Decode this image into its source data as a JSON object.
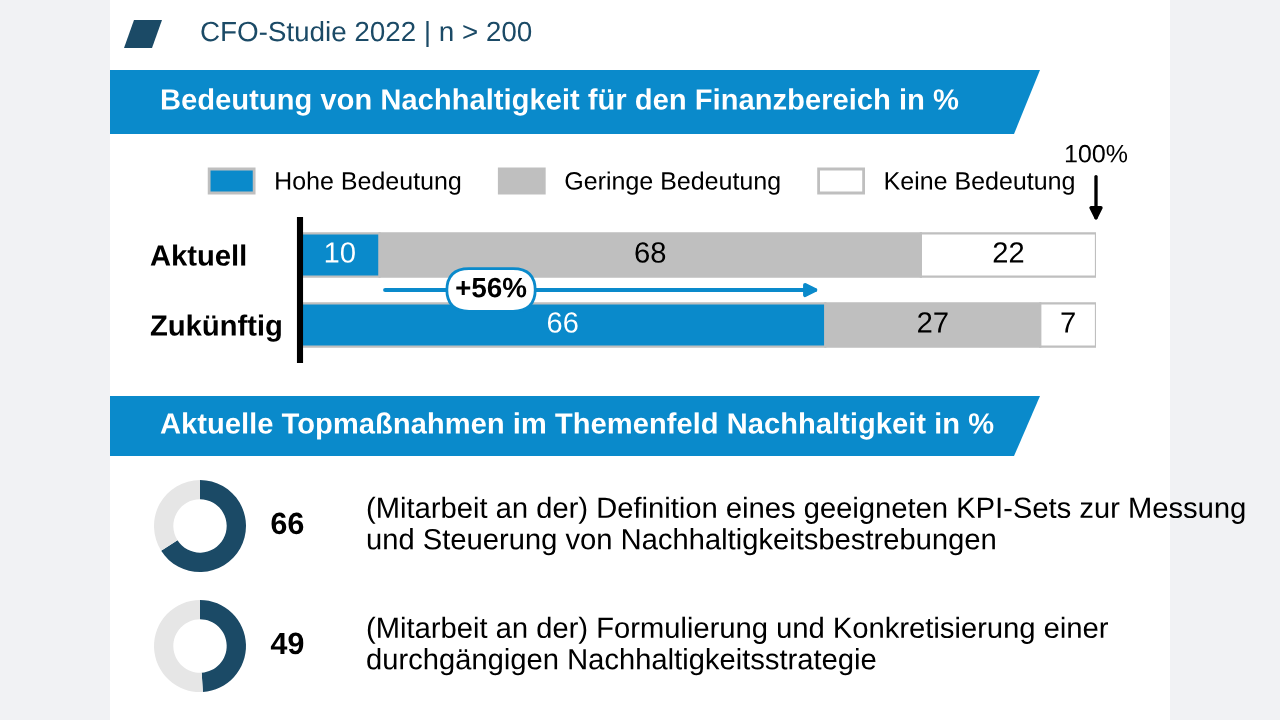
{
  "chart_data": [
    {
      "type": "bar",
      "orientation": "horizontal",
      "stacked": true,
      "title": "Bedeutung von Nachhaltigkeit für den Finanzbereich in %",
      "categories": [
        "Aktuell",
        "Zukünftig"
      ],
      "xlim": [
        0,
        100
      ],
      "series": [
        {
          "name": "Hohe Bedeutung",
          "color": "#0a8acb",
          "values": [
            10,
            66
          ]
        },
        {
          "name": "Geringe Bedeutung",
          "color": "#bfbfbf",
          "values": [
            68,
            27
          ]
        },
        {
          "name": "Keine Bedeutung",
          "color": "#ffffff",
          "values": [
            22,
            7
          ]
        }
      ],
      "data_labels": true,
      "legend": "top",
      "annotations": [
        "CFO-Studie 2022 | n > 200",
        "100%",
        "+56%"
      ]
    },
    {
      "type": "donut",
      "title": "Aktuelle Topmaßnahmen im Themenfeld Nachhaltigkeit in %",
      "categories": [
        null,
        null
      ],
      "values": [
        66,
        34
      ],
      "colors": [
        "#1b4a66",
        "#e6e6e6"
      ],
      "value_labels": [
        "66",
        null
      ],
      "annotations": [
        "(Mitarbeit an der) Definition eines geeigneten KPI-Sets zur Messung und Steuerung von Nachhaltigkeitsbestrebungen"
      ]
    },
    {
      "type": "donut",
      "categories": [
        null,
        null
      ],
      "values": [
        49,
        51
      ],
      "colors": [
        "#1b4a66",
        "#e6e6e6"
      ],
      "value_labels": [
        "49",
        null
      ],
      "annotations": [
        "(Mitarbeit an der) Formulierung und Konkretisierung einer durchgängigen Nachhaltigkeitsstrategie"
      ]
    }
  ]
}
